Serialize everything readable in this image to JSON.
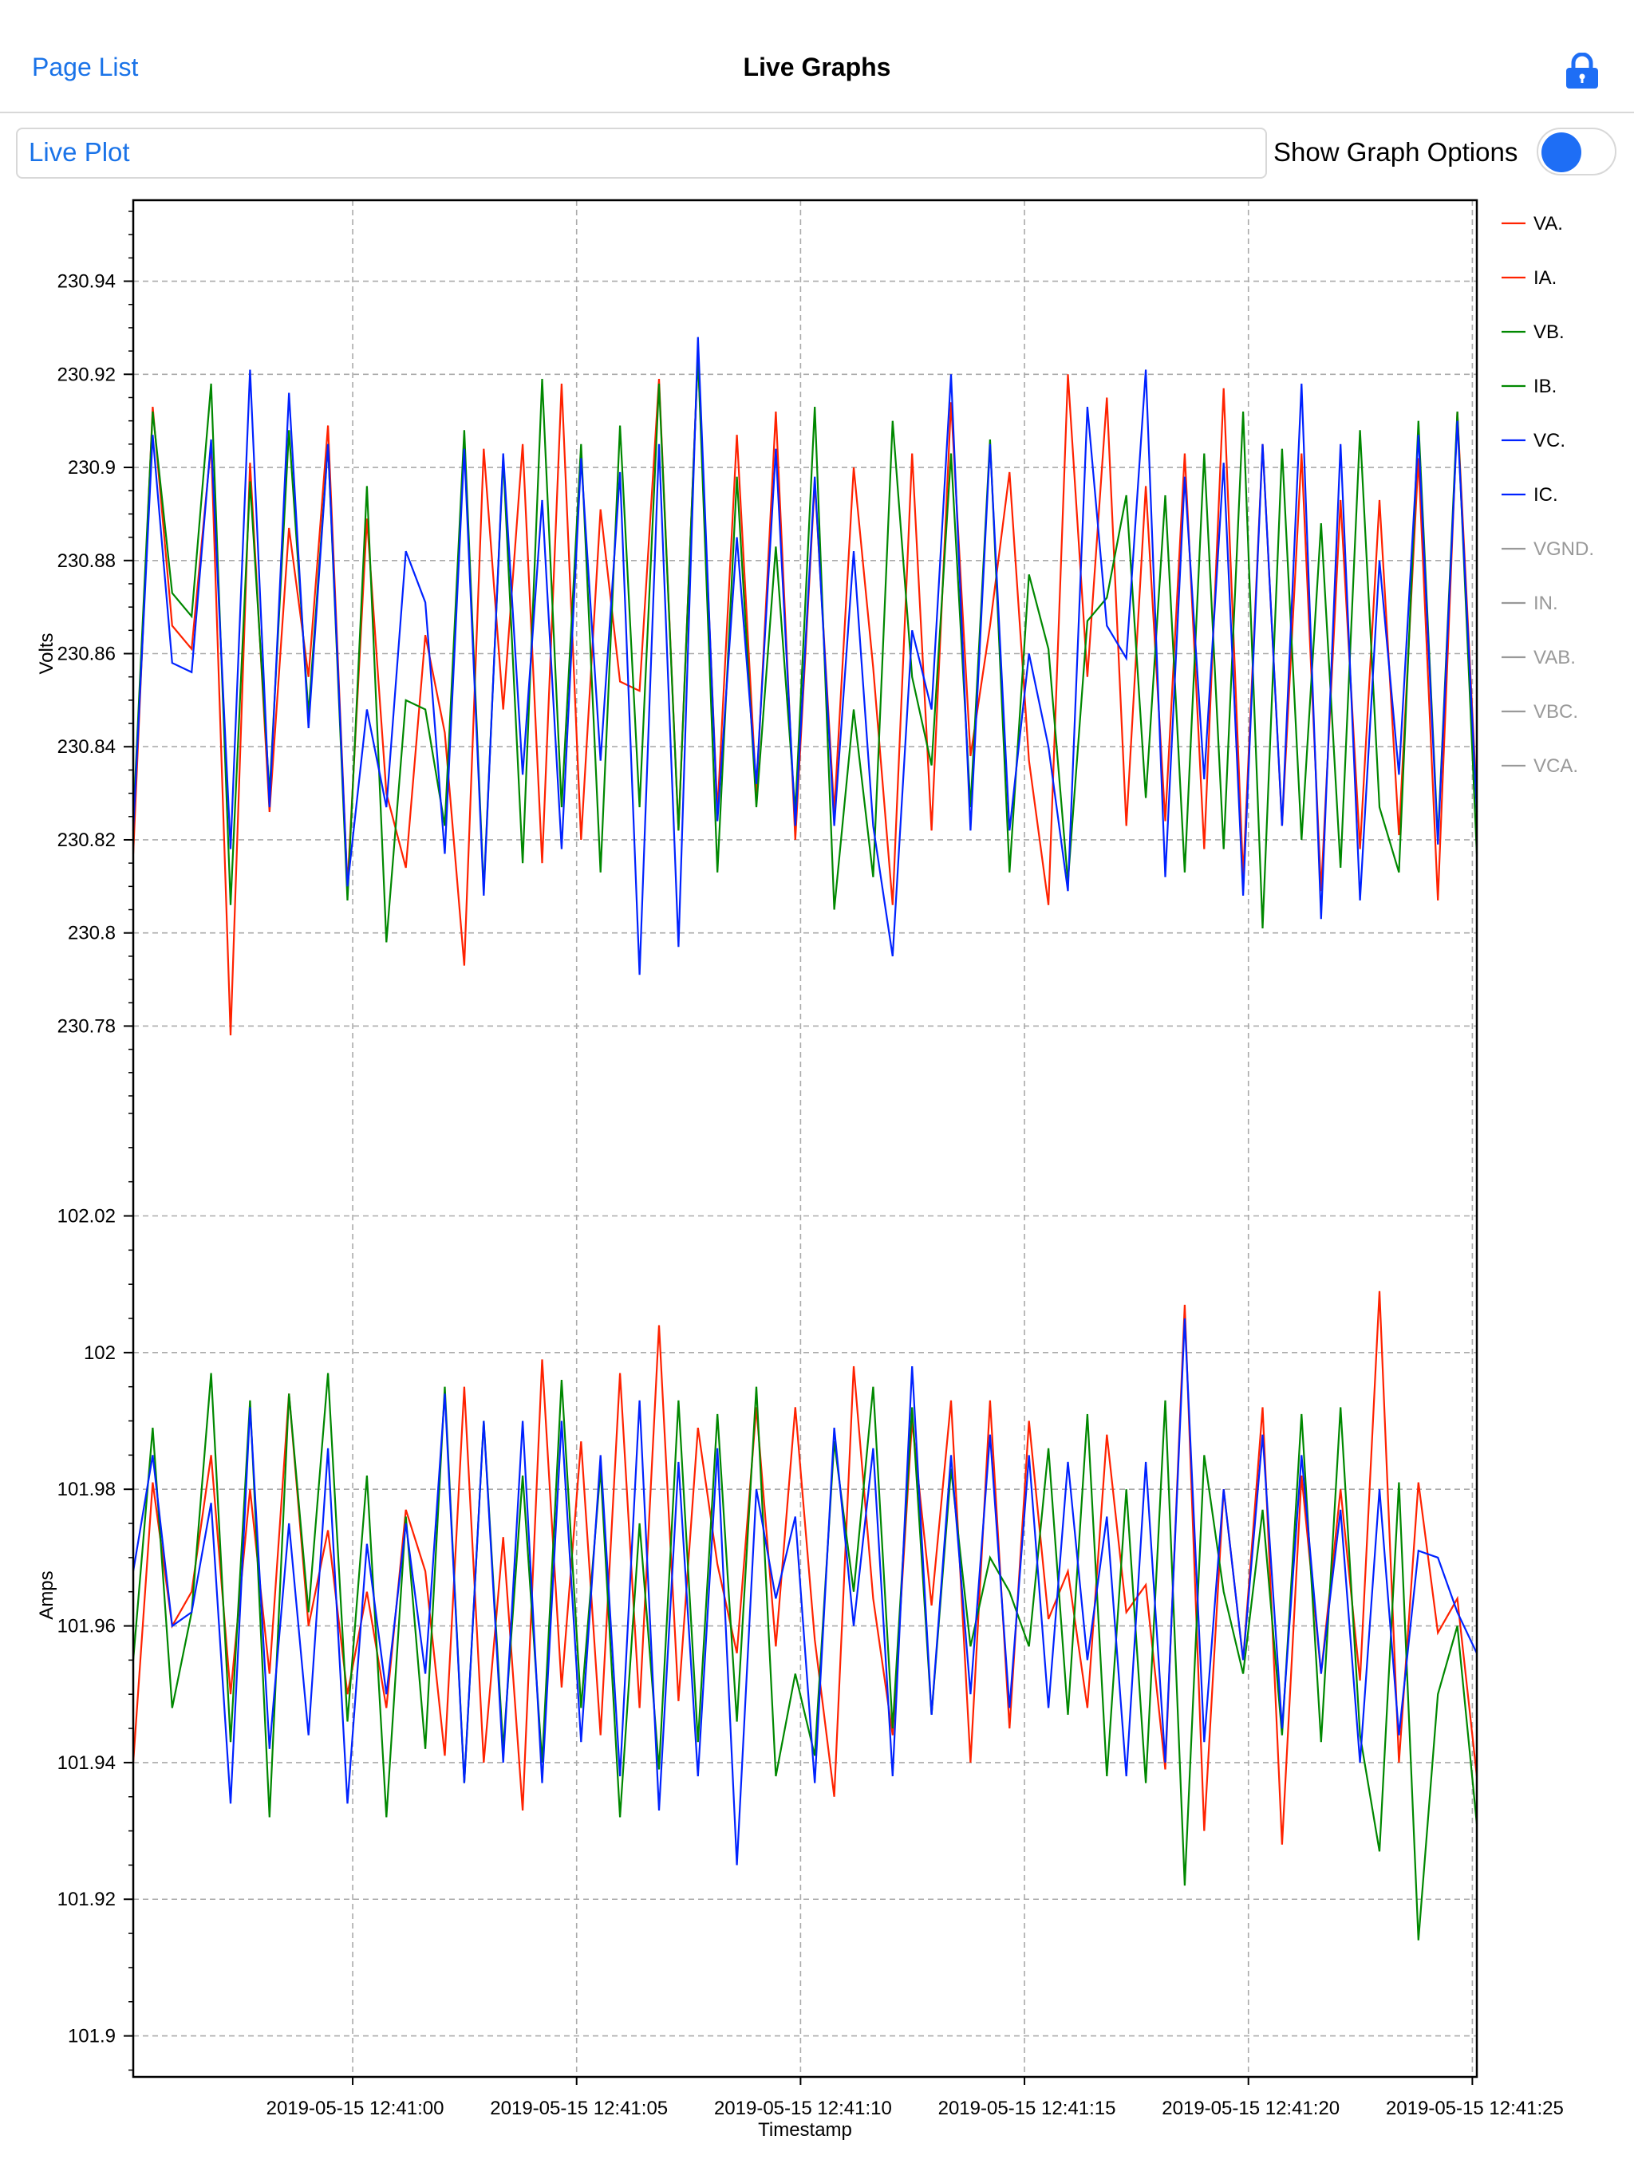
{
  "nav": {
    "back_label": "Page List",
    "title": "Live Graphs"
  },
  "toolbar": {
    "plot_tab": "Live Plot",
    "options_label": "Show Graph Options",
    "options_on": false
  },
  "colors": {
    "red": "#ff2200",
    "green": "#008800",
    "blue": "#0022ff",
    "inactive": "#999999",
    "accent": "#1a73e8"
  },
  "chart_data": [
    {
      "type": "line",
      "ylabel": "Volts",
      "ylim": [
        230.765,
        230.955
      ],
      "yticks": [
        "230.94",
        "230.92",
        "230.9",
        "230.88",
        "230.86",
        "230.84",
        "230.82",
        "230.8",
        "230.78"
      ],
      "series": [
        {
          "name": "VA.",
          "color": "#ff2200",
          "values": [
            230.817,
            230.913,
            230.866,
            230.861,
            230.905,
            230.778,
            230.901,
            230.826,
            230.887,
            230.855,
            230.909,
            230.81,
            230.889,
            230.83,
            230.814,
            230.864,
            230.843,
            230.793,
            230.904,
            230.848,
            230.905,
            230.815,
            230.918,
            230.82,
            230.891,
            230.854,
            230.852,
            230.919,
            230.822,
            230.924,
            230.826,
            230.907,
            230.83,
            230.912,
            230.82,
            230.897,
            230.826,
            230.9,
            230.857,
            230.806,
            230.903,
            230.822,
            230.914,
            230.838,
            230.866,
            230.899,
            230.837,
            230.806,
            230.92,
            230.855,
            230.915,
            230.823,
            230.896,
            230.824,
            230.903,
            230.818,
            230.917,
            230.812,
            230.905,
            230.823,
            230.903,
            230.809,
            230.893,
            230.818,
            230.893,
            230.821,
            230.902,
            230.807,
            230.912,
            230.828
          ]
        },
        {
          "name": "VB.",
          "color": "#008800",
          "values": [
            230.824,
            230.912,
            230.873,
            230.868,
            230.918,
            230.806,
            230.897,
            230.83,
            230.908,
            230.847,
            230.905,
            230.807,
            230.896,
            230.798,
            230.85,
            230.848,
            230.823,
            230.908,
            230.809,
            230.902,
            230.815,
            230.919,
            230.827,
            230.905,
            230.813,
            230.909,
            230.827,
            230.918,
            230.822,
            230.924,
            230.813,
            230.898,
            230.827,
            230.883,
            230.826,
            230.913,
            230.805,
            230.848,
            230.812,
            230.91,
            230.855,
            230.836,
            230.903,
            230.827,
            230.906,
            230.813,
            230.877,
            230.861,
            230.811,
            230.867,
            230.872,
            230.894,
            230.829,
            230.894,
            230.813,
            230.903,
            230.818,
            230.912,
            230.801,
            230.904,
            230.82,
            230.888,
            230.814,
            230.908,
            230.827,
            230.813,
            230.91,
            230.82,
            230.912,
            230.817
          ]
        },
        {
          "name": "VC.",
          "color": "#0022ff",
          "values": [
            230.822,
            230.907,
            230.858,
            230.856,
            230.906,
            230.818,
            230.921,
            230.827,
            230.916,
            230.844,
            230.905,
            230.81,
            230.848,
            230.827,
            230.882,
            230.871,
            230.817,
            230.904,
            230.808,
            230.903,
            230.834,
            230.893,
            230.818,
            230.902,
            230.837,
            230.899,
            230.791,
            230.905,
            230.797,
            230.928,
            230.824,
            230.885,
            230.832,
            230.904,
            230.823,
            230.898,
            230.823,
            230.882,
            230.823,
            230.795,
            230.865,
            230.848,
            230.92,
            230.822,
            230.905,
            230.822,
            230.86,
            230.84,
            230.809,
            230.913,
            230.866,
            230.859,
            230.921,
            230.812,
            230.898,
            230.833,
            230.901,
            230.808,
            230.905,
            230.823,
            230.918,
            230.803,
            230.905,
            230.807,
            230.88,
            230.834,
            230.907,
            230.819,
            230.91,
            230.826
          ]
        }
      ]
    },
    {
      "type": "line",
      "ylabel": "Amps",
      "ylim": [
        101.894,
        102.035
      ],
      "yticks": [
        "102.02",
        "102",
        "101.98",
        "101.96",
        "101.94",
        "101.92",
        "101.9"
      ],
      "series": [
        {
          "name": "IA.",
          "color": "#ff2200",
          "values": [
            101.94,
            101.981,
            101.96,
            101.965,
            101.985,
            101.95,
            101.98,
            101.953,
            101.994,
            101.96,
            101.974,
            101.95,
            101.965,
            101.948,
            101.977,
            101.968,
            101.941,
            101.995,
            101.94,
            101.973,
            101.933,
            101.999,
            101.951,
            101.987,
            101.944,
            101.997,
            101.948,
            102.004,
            101.949,
            101.989,
            101.969,
            101.956,
            101.992,
            101.957,
            101.992,
            101.958,
            101.935,
            101.998,
            101.964,
            101.944,
            101.99,
            101.963,
            101.993,
            101.94,
            101.993,
            101.945,
            101.99,
            101.961,
            101.968,
            101.948,
            101.988,
            101.962,
            101.966,
            101.939,
            102.007,
            101.93,
            101.98,
            101.955,
            101.992,
            101.928,
            101.982,
            101.953,
            101.98,
            101.952,
            102.009,
            101.94,
            101.981,
            101.959,
            101.964,
            101.938
          ]
        },
        {
          "name": "IB.",
          "color": "#008800",
          "values": [
            101.955,
            101.989,
            101.948,
            101.962,
            101.997,
            101.943,
            101.993,
            101.932,
            101.994,
            101.962,
            101.997,
            101.946,
            101.982,
            101.932,
            101.976,
            101.942,
            101.995,
            101.937,
            101.99,
            101.942,
            101.982,
            101.94,
            101.996,
            101.948,
            101.983,
            101.932,
            101.975,
            101.939,
            101.993,
            101.943,
            101.991,
            101.946,
            101.995,
            101.938,
            101.953,
            101.941,
            101.987,
            101.965,
            101.995,
            101.945,
            101.992,
            101.947,
            101.983,
            101.957,
            101.97,
            101.965,
            101.957,
            101.986,
            101.947,
            101.991,
            101.938,
            101.98,
            101.937,
            101.993,
            101.922,
            101.985,
            101.965,
            101.953,
            101.977,
            101.944,
            101.991,
            101.943,
            101.992,
            101.944,
            101.927,
            101.981,
            101.914,
            101.95,
            101.96,
            101.931
          ]
        },
        {
          "name": "IC.",
          "color": "#0022ff",
          "values": [
            101.968,
            101.985,
            101.96,
            101.962,
            101.978,
            101.934,
            101.992,
            101.942,
            101.975,
            101.944,
            101.986,
            101.934,
            101.972,
            101.95,
            101.975,
            101.953,
            101.994,
            101.937,
            101.99,
            101.94,
            101.99,
            101.937,
            101.99,
            101.943,
            101.985,
            101.938,
            101.993,
            101.933,
            101.984,
            101.938,
            101.986,
            101.925,
            101.98,
            101.964,
            101.976,
            101.937,
            101.989,
            101.96,
            101.986,
            101.938,
            101.998,
            101.947,
            101.985,
            101.95,
            101.988,
            101.948,
            101.985,
            101.948,
            101.984,
            101.955,
            101.976,
            101.938,
            101.984,
            101.94,
            102.005,
            101.943,
            101.98,
            101.955,
            101.988,
            101.945,
            101.985,
            101.953,
            101.977,
            101.94,
            101.98,
            101.944,
            101.971,
            101.97,
            101.962,
            101.956
          ]
        }
      ]
    }
  ],
  "x_axis": {
    "label": "Timestamp",
    "ticks": [
      "2019-05-15  12:41:00",
      "2019-05-15  12:41:05",
      "2019-05-15  12:41:10",
      "2019-05-15  12:41:15",
      "2019-05-15  12:41:20",
      "2019-05-15  12:41:25"
    ],
    "xlim_seconds": [
      -4.9,
      25.1
    ]
  },
  "legend": [
    {
      "label": "VA.",
      "color": "#ff2200",
      "active": true
    },
    {
      "label": "IA.",
      "color": "#ff2200",
      "active": true
    },
    {
      "label": "VB.",
      "color": "#008800",
      "active": true
    },
    {
      "label": "IB.",
      "color": "#008800",
      "active": true
    },
    {
      "label": "VC.",
      "color": "#0022ff",
      "active": true
    },
    {
      "label": "IC.",
      "color": "#0022ff",
      "active": true
    },
    {
      "label": "VGND.",
      "color": "#999999",
      "active": false
    },
    {
      "label": "IN.",
      "color": "#999999",
      "active": false
    },
    {
      "label": "VAB.",
      "color": "#999999",
      "active": false
    },
    {
      "label": "VBC.",
      "color": "#999999",
      "active": false
    },
    {
      "label": "VCA.",
      "color": "#999999",
      "active": false
    }
  ]
}
